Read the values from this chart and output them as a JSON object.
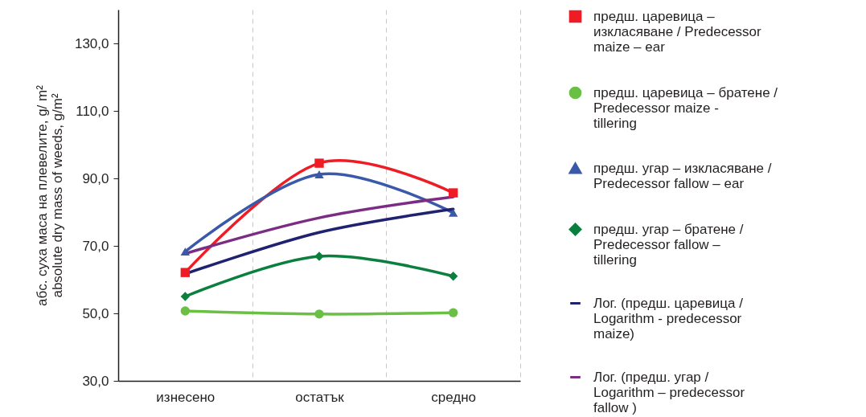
{
  "chart_data": {
    "type": "line",
    "ylabel": "абс. суха маса на плевелите, g/ m²\nabsolute dry mass of weeds, g/m²",
    "categories": [
      "изнесено",
      "остатък",
      "средно"
    ],
    "ylim": [
      30,
      140
    ],
    "yticks": [
      {
        "value": 30,
        "label": "30,0"
      },
      {
        "value": 50,
        "label": "50,0"
      },
      {
        "value": 70,
        "label": "70,0"
      },
      {
        "value": 90,
        "label": "90,0"
      },
      {
        "value": 110,
        "label": "110,0"
      },
      {
        "value": 130,
        "label": "130,0"
      }
    ],
    "grid": "x",
    "legend": "right",
    "series": [
      {
        "name": "предш. царевица – изкласяване / Predecessor maize – ear",
        "color": "#ee1c25",
        "marker": "square",
        "values": [
          62.1,
          94.5,
          85.7
        ]
      },
      {
        "name": "предш. царевица – братене / Predecessor  maize - tillering",
        "color": "#6abf45",
        "marker": "circle",
        "values": [
          50.7,
          49.8,
          50.2
        ]
      },
      {
        "name": "предш. угар – изкласяване / Predecessor fallow  – ear",
        "color": "#3a59a8",
        "marker": "triangle",
        "values": [
          68.3,
          91.2,
          79.8
        ]
      },
      {
        "name": "предш. угар – братене / Predecessor fallow  – tillering",
        "color": "#0a7f3e",
        "marker": "diamond",
        "values": [
          55.0,
          66.9,
          61.0
        ]
      },
      {
        "name": "Лог. (предш. царевица / Logarithm - predecessor maize)",
        "color": "#1f2171",
        "marker": "none",
        "values": [
          61.7,
          74.0,
          80.9
        ]
      },
      {
        "name": "Лог. (предш. угар / Logarithm – predecessor  fallow )",
        "color": "#7b2c83",
        "marker": "none",
        "values": [
          67.7,
          78.3,
          84.5
        ]
      }
    ]
  }
}
